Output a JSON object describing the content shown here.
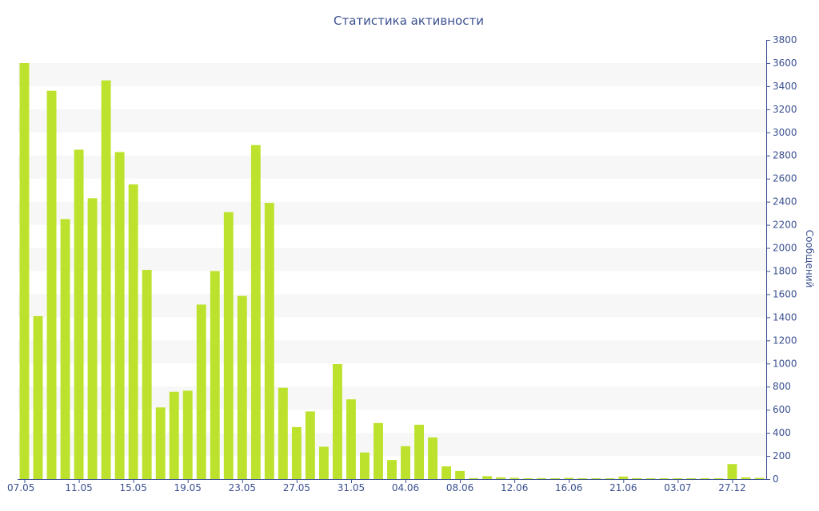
{
  "colors": {
    "bar": "#bde22e",
    "band": "#f7f7f7",
    "axis": "#3b5090",
    "text": "#3b5090"
  },
  "chart_data": {
    "type": "bar",
    "title": "Статистика активности",
    "xlabel": "",
    "ylabel": "Сообщений",
    "y_axis_side": "right",
    "ylim": [
      0,
      3800
    ],
    "y_ticks": [
      0,
      200,
      400,
      600,
      800,
      1000,
      1200,
      1400,
      1600,
      1800,
      2000,
      2200,
      2400,
      2600,
      2800,
      3000,
      3200,
      3400,
      3600,
      3800
    ],
    "grid": "alternating horizontal bands",
    "legend": "none",
    "x_tick_labels": [
      {
        "index": 0,
        "label": "07.05"
      },
      {
        "index": 4,
        "label": "11.05"
      },
      {
        "index": 8,
        "label": "15.05"
      },
      {
        "index": 12,
        "label": "19.05"
      },
      {
        "index": 16,
        "label": "23.05"
      },
      {
        "index": 20,
        "label": "27.05"
      },
      {
        "index": 24,
        "label": "31.05"
      },
      {
        "index": 28,
        "label": "04.06"
      },
      {
        "index": 32,
        "label": "08.06"
      },
      {
        "index": 36,
        "label": "12.06"
      },
      {
        "index": 40,
        "label": "16.06"
      },
      {
        "index": 44,
        "label": "21.06"
      },
      {
        "index": 48,
        "label": "03.07"
      },
      {
        "index": 52,
        "label": "27.12"
      }
    ],
    "values": [
      3600,
      1410,
      3360,
      2250,
      2850,
      2430,
      3450,
      2830,
      2550,
      1810,
      620,
      755,
      765,
      1510,
      1800,
      2310,
      1585,
      2890,
      2390,
      790,
      450,
      585,
      280,
      995,
      690,
      230,
      485,
      165,
      285,
      470,
      360,
      110,
      70,
      8,
      25,
      15,
      10,
      5,
      8,
      5,
      10,
      5,
      5,
      5,
      22,
      8,
      5,
      5,
      5,
      5,
      5,
      5,
      130,
      15,
      10
    ]
  }
}
